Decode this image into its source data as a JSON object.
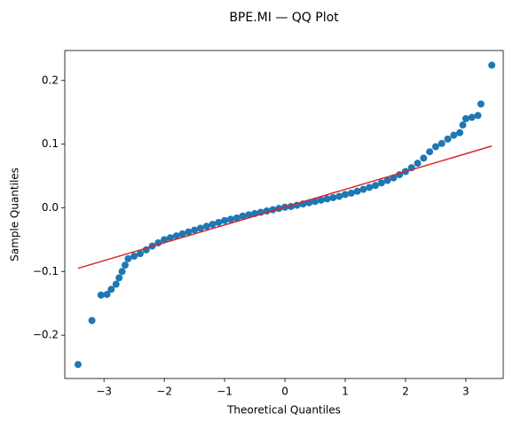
{
  "chart_data": {
    "type": "scatter",
    "title": "BPE.MI — QQ Plot",
    "xlabel": "Theoretical Quantiles",
    "ylabel": "Sample Quantiles",
    "series": [
      {
        "color": "#1f77b4",
        "x": [
          -3.43,
          -3.2,
          -3.05,
          -2.95,
          -2.88,
          -2.8,
          -2.75,
          -2.7,
          -2.65,
          -2.6,
          -2.5,
          -2.4,
          -2.3,
          -2.2,
          -2.1,
          -2.0,
          -1.9,
          -1.8,
          -1.7,
          -1.6,
          -1.5,
          -1.4,
          -1.3,
          -1.2,
          -1.1,
          -1.0,
          -0.9,
          -0.8,
          -0.7,
          -0.6,
          -0.5,
          -0.4,
          -0.3,
          -0.2,
          -0.1,
          0,
          0.1,
          0.2,
          0.3,
          0.4,
          0.5,
          0.6,
          0.7,
          0.8,
          0.9,
          1.0,
          1.1,
          1.2,
          1.3,
          1.4,
          1.5,
          1.6,
          1.7,
          1.8,
          1.9,
          2.0,
          2.1,
          2.2,
          2.3,
          2.4,
          2.5,
          2.6,
          2.7,
          2.8,
          2.9,
          2.95,
          3.0,
          3.1,
          3.2,
          3.25,
          3.43
        ],
        "values": [
          -0.246,
          -0.177,
          -0.137,
          -0.136,
          -0.128,
          -0.12,
          -0.11,
          -0.1,
          -0.09,
          -0.08,
          -0.076,
          -0.072,
          -0.066,
          -0.06,
          -0.055,
          -0.05,
          -0.047,
          -0.044,
          -0.041,
          -0.038,
          -0.035,
          -0.032,
          -0.029,
          -0.026,
          -0.023,
          -0.02,
          -0.018,
          -0.016,
          -0.013,
          -0.011,
          -0.009,
          -0.007,
          -0.005,
          -0.003,
          -0.001,
          0.001,
          0.002,
          0.004,
          0.006,
          0.008,
          0.01,
          0.012,
          0.014,
          0.016,
          0.018,
          0.021,
          0.023,
          0.026,
          0.029,
          0.032,
          0.035,
          0.039,
          0.043,
          0.047,
          0.052,
          0.057,
          0.063,
          0.07,
          0.078,
          0.088,
          0.096,
          0.101,
          0.108,
          0.114,
          0.118,
          0.13,
          0.14,
          0.142,
          0.145,
          0.163,
          0.224
        ]
      }
    ],
    "reference_line": {
      "color": "#d62728",
      "x": [
        -3.43,
        3.43
      ],
      "values": [
        -0.095,
        0.097
      ]
    },
    "xlim": [
      -3.65,
      3.62
    ],
    "xticks": [
      -3,
      -2,
      -1,
      0,
      1,
      2,
      3
    ],
    "ylim": [
      -0.268,
      0.247
    ],
    "yticks": [
      -0.2,
      -0.1,
      0.0,
      0.1,
      0.2
    ]
  }
}
